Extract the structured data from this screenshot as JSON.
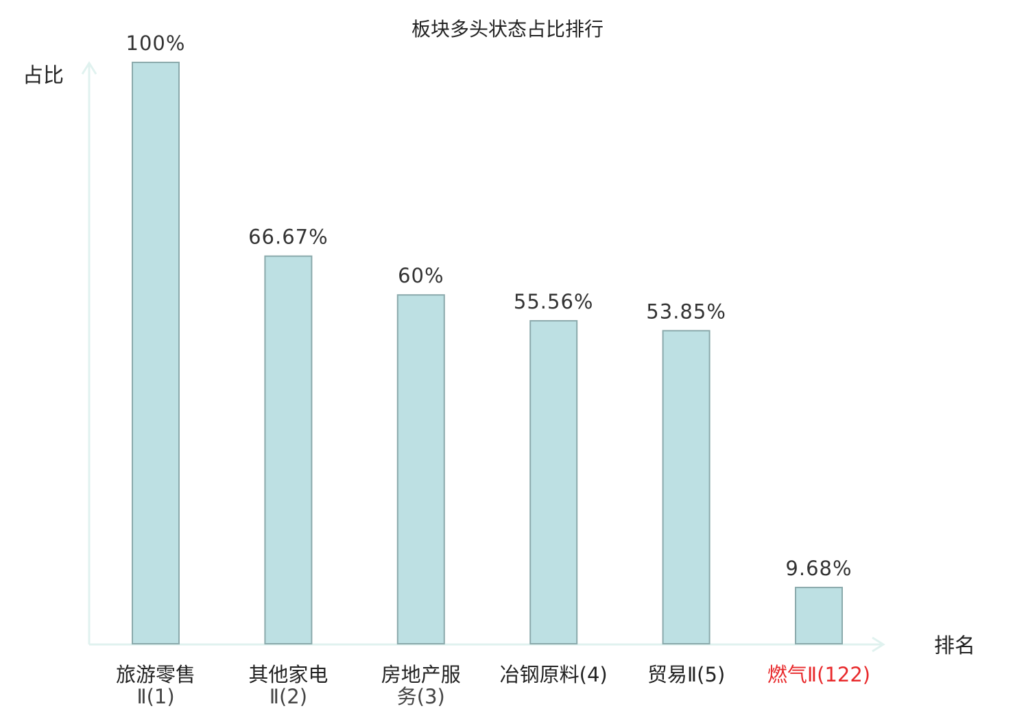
{
  "chart_data": {
    "type": "bar",
    "title": "板块多头状态占比排行",
    "xlabel": "排名",
    "ylabel": "占比",
    "ylim": [
      0,
      100
    ],
    "grid": false,
    "categories": [
      {
        "name_lines": [
          "旅游零售",
          "Ⅱ(1)"
        ],
        "highlight": false
      },
      {
        "name_lines": [
          "其他家电",
          "Ⅱ(2)"
        ],
        "highlight": false
      },
      {
        "name_lines": [
          "房地产服",
          "务(3)"
        ],
        "highlight": false
      },
      {
        "name_lines": [
          "冶钢原料(4)"
        ],
        "highlight": false
      },
      {
        "name_lines": [
          "贸易Ⅱ(5)"
        ],
        "highlight": false
      },
      {
        "name_lines": [
          "燃气Ⅱ(122)"
        ],
        "highlight": true
      }
    ],
    "values": [
      100,
      66.67,
      60,
      55.56,
      53.85,
      9.68
    ],
    "data_labels": [
      "100%",
      "66.67%",
      "60%",
      "55.56%",
      "53.85%",
      "9.68%"
    ]
  },
  "colors": {
    "bar_fill": "#bde0e3",
    "bar_stroke": "#8aa9ab",
    "axis": "#e0f2ef",
    "highlight_text": "#e8292b",
    "text": "#222222"
  }
}
